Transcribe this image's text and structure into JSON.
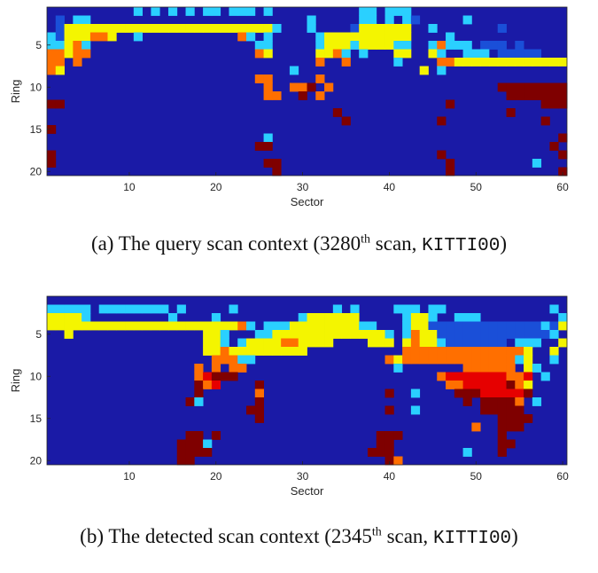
{
  "chart_data": [
    {
      "type": "heatmap",
      "xlabel": "Sector",
      "ylabel": "Ring",
      "x_ticks": [
        10,
        20,
        30,
        40,
        50,
        60
      ],
      "y_ticks": [
        5,
        10,
        15,
        20
      ],
      "xlim": [
        1,
        60
      ],
      "ylim": [
        1,
        20
      ],
      "colormap": "jet",
      "caption": {
        "prefix": "(a) The query scan context (3280",
        "sup": "th",
        "mid": " scan, ",
        "mono": "KITTI00",
        "suffix": ")"
      },
      "levels": [
        "ccccccccccdcdcdcdcddcdddcdccccccccccddcdddccccccccccccccccc",
        "cbcddcccccccccccccccccccccccccdcccccddcdcdbcccccdccccccccccc",
        "cbeeeeeeeeeeeeeeeeeeeeeeeedcccdccccbeeeeeeccdcccccccbcccccc",
        "dbeeeffeccdcccccccccccfdcdcccccdeeeeeeeeeeccccdcccccccccccc",
        "ddefdcccccccccccccccccccddcccccdeeedeeeeddccdfdddcbbbcbcccc",
        "ffeffcccccccccccccccccccfeccccceefdcdccceeccedccdddcbbbbbcc",
        "ffcfcccccccccccccccccccccccccccfccfcccccdccccffeeeeeeeeeeeee",
        "feccccccccccccccccccccccccccdccccccccccccccecdcccccccccccccc",
        "ccccccccccccccccccccccccffcccccfcccccccccccccccccccccccccccc",
        "cccccccccccccccccccccccccfccffhcfccccccccccccccccccchhhhhhhh",
        "cccccccccccccccccccccccccffcchcfccccccccccccccccccccchhhhhhh",
        "hhcccccccccccccccccccccccccccccccccccccccccccchcccccccccchhh",
        "ccccccccccccccccccccccccccccccccchccccccccccccccccccchcccccc",
        "cccccccccccccccccccccccccccccccccchcccccccccchccccccccccchcc",
        "hccccccccccccccccccccccccccccccccccccccccccccccccccccccccccc",
        "cccccccccccccccccccccccccdccccccccccccccccccccccccccccccccch",
        "cccccccccccccccccccccccchhcccccccccccccccccccccccccccccccchc",
        "hcccccccccccccccccccccccccccccccccccccccccccchccccccccccccch",
        "hcccccccccccccccccccccccchhccccccccccccccccccchcccccccccdccc",
        "cccccccccccccccccccccccccchccccccccccccccccccchcccccccccccch"
      ]
    },
    {
      "type": "heatmap",
      "xlabel": "Sector",
      "ylabel": "Ring",
      "x_ticks": [
        10,
        20,
        30,
        40,
        50,
        60
      ],
      "y_ticks": [
        5,
        10,
        15,
        20
      ],
      "xlim": [
        1,
        60
      ],
      "ylim": [
        1,
        20
      ],
      "colormap": "jet",
      "caption": {
        "prefix": "(b) The detected scan context (2345",
        "sup": "th",
        "mid": " scan, ",
        "mono": "KITTI00",
        "suffix": ")"
      },
      "levels": [
        "cccccccccccccccccccccccccccccccccccccccccccccccccccccccccccc",
        "dddddcddddddddcdcccccdcccccccccccdcdccccdddcddccccccccccccd",
        "eeeedcccccccccdccccdcccccccccdeeeeeecccccdeedccdddcccccccccd",
        "eeeeeeeeeeeeeeeeeeeeeefdcdddeeeeeeeeddcccdeebbbbbbbbbbbbbdbe",
        "cceccccccccccccccceedcccddeeeeeeeeeeeeedcdfeebbbbbbbbbbbbbdc",
        "cccccccccccccccccceedcdeeeeffeeeecccceeecefeedbbbbbbbcdddcce",
        "cccccccccccccccccceefeeeeeeeeecccccccccccffffffffffffffeccec",
        "cccccccccccccccccccfffddcccccccccccccccfefffffffffffffdeccdc",
        "cccccccccccccccccfcfcffcccccccccccccccccdcccccccffffffcedccc",
        "cccccccccccccccccfghhhcccccccccccccccccccccccfgggggggffgcdcc",
        "ccccccccccccccccchfgcccchcccccccccccccccccccccffggggghfecccc",
        "ccccccccccccccccchccccccfcccccccccccccchccdcccchhhggggghcccc",
        "cccccccccccccccchdcccccchccccccccccccccccccccccchchhhhfcdccc",
        "ccccccccccccccccccccccchhcccccccccccccchccdccccccchhhhhcccc",
        "cccccccccccccccccccccccchccccccccccccccccccccccccccchhhhcccc",
        "cccccccccccccccccccccccccccccccccccccccccccccccccfcchhhccccc",
        "cccccccccccccccchhchcccccccccccccccccchhhccccccccccchcccccc",
        "ccccccccccccccchhhdccccccccccccccccccchhcccccccccccchhcccccc",
        "ccccccccccccccchhhhcccccccccccccccccchhhccccccccdccchccccccc",
        "ccccccccccccccchhcccccccccccccccccccccchfccccccccccccccccccc"
      ]
    }
  ]
}
